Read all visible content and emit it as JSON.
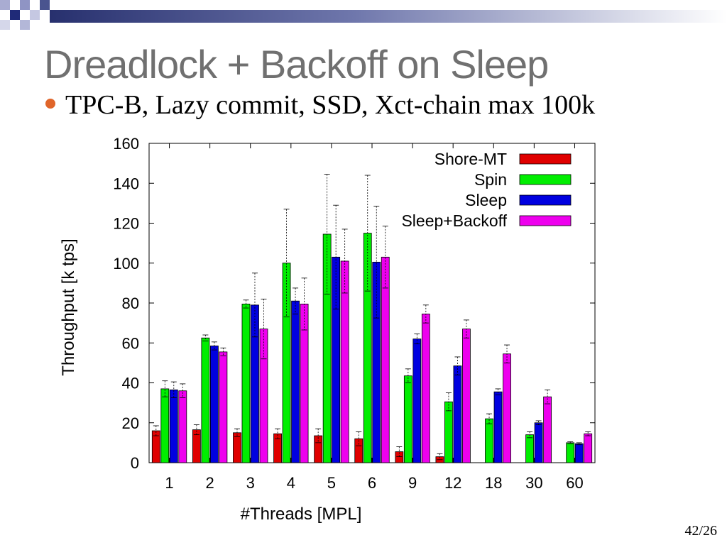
{
  "slide": {
    "title": "Dreadlock + Backoff on Sleep",
    "subtitle": "TPC-B, Lazy commit, SSD, Xct-chain max 100k",
    "page_number": "42/26",
    "bullet_color": "#e0652a",
    "title_color": "#707070"
  },
  "chart_data": {
    "type": "bar",
    "title": "",
    "xlabel": "#Threads [MPL]",
    "ylabel": "Throughput [k tps]",
    "ylim": [
      0,
      160
    ],
    "yticks": [
      0,
      20,
      40,
      60,
      80,
      100,
      120,
      140,
      160
    ],
    "categories": [
      "1",
      "2",
      "3",
      "4",
      "5",
      "6",
      "9",
      "12",
      "18",
      "30",
      "60"
    ],
    "legend_position": "top-right",
    "grid": false,
    "series": [
      {
        "name": "Shore-MT",
        "color": "#e00000",
        "values": [
          16,
          16.5,
          15,
          14.5,
          13.5,
          12,
          5.5,
          3,
          null,
          null,
          null
        ],
        "errors": [
          2.5,
          2.5,
          2,
          2.5,
          3.5,
          3.5,
          2.5,
          1.5,
          null,
          null,
          null
        ]
      },
      {
        "name": "Spin",
        "color": "#00ee00",
        "values": [
          37,
          62.5,
          79.5,
          100,
          114.5,
          115,
          43.5,
          30.5,
          22,
          14,
          10
        ],
        "errors": [
          4,
          1.5,
          2,
          27,
          30,
          29,
          3.5,
          4.5,
          2.5,
          1.5,
          0.5
        ]
      },
      {
        "name": "Sleep",
        "color": "#0000e0",
        "values": [
          36.5,
          58.5,
          79,
          81,
          103,
          100.5,
          62,
          48.5,
          35.5,
          20,
          9.5
        ],
        "errors": [
          4,
          2,
          16,
          6.5,
          26,
          28,
          2.5,
          4.5,
          1.5,
          1,
          0.5
        ]
      },
      {
        "name": "Sleep+Backoff",
        "color": "#ee00ee",
        "values": [
          36,
          55.5,
          67,
          79.5,
          101,
          103,
          74.5,
          67,
          54.5,
          33,
          14.5
        ],
        "errors": [
          3.5,
          2,
          15,
          13,
          16,
          15.5,
          4.5,
          4.5,
          4.5,
          3.5,
          1
        ]
      }
    ]
  }
}
